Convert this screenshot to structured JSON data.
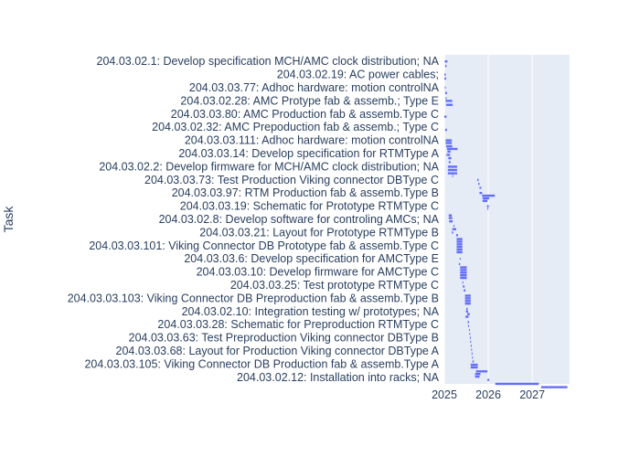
{
  "chart_data": {
    "type": "gantt",
    "ylabel": "Task",
    "xlabel": "",
    "x_tick_labels": [
      "2025",
      "2026",
      "2027"
    ],
    "xlim": [
      2025.0,
      2027.85
    ],
    "plot_background": "#e5ecf6",
    "bar_color": "#636efa",
    "y_tick_labels": [
      "204.03.02.1: Develop specification MCH/AMC clock distribution; NA",
      "204.03.02.19: AC power cables;",
      "204.03.03.77: Adhoc hardware: motion controlNA",
      "204.03.02.28: AMC Protype fab & assemb.; Type E",
      "204.03.03.80: AMC Production fab & assemb.Type C",
      "204.03.02.32: AMC Prepoduction fab & assemb.; Type C",
      "204.03.03.111: Adhoc hardware: motion controlNA",
      "204.03.03.14: Develop specification for RTMType A",
      "204.03.02.2: Develop firmware for MCH/AMC clock distribution; NA",
      "204.03.03.73: Test Production Viking connector DBType C",
      "204.03.03.97: RTM Production fab & assemb.Type B",
      "204.03.03.19: Schematic for Prototype RTMType C",
      "204.03.02.8: Develop software for controling AMCs; NA",
      "204.03.03.21: Layout for Prototype RTMType B",
      "204.03.03.101: Viking Connector DB Prototype fab & assemb.Type C",
      "204.03.03.6: Develop specification for AMCType E",
      "204.03.03.10: Develop firmware for AMCType C",
      "204.03.03.25: Test prototype RTMType C",
      "204.03.03.103: Viking Connector DB Preproduction fab & assemb.Type B",
      "204.03.02.10: Integration testing w/ prototypes; NA",
      "204.03.03.28: Schematic for Preproduction RTMType C",
      "204.03.03.63: Test Preproduction Viking connector DBType B",
      "204.03.03.68: Layout for Production Viking connector DBType A",
      "204.03.03.105: Viking Connector DB Production fab & assemb.Type A",
      "204.03.02.12: Installation into racks; NA"
    ],
    "tasks": [
      {
        "row": 0,
        "start": 2025.01,
        "end": 2025.07
      },
      {
        "row": 0.35,
        "start": 2025.02,
        "end": 2025.05
      },
      {
        "row": 1,
        "start": 2025.0,
        "end": 2025.03
      },
      {
        "row": 1.3,
        "start": 2025.0,
        "end": 2025.04
      },
      {
        "row": 2,
        "start": 2025.01,
        "end": 2025.03
      },
      {
        "row": 2.4,
        "start": 2025.02,
        "end": 2025.06
      },
      {
        "row": 2.8,
        "start": 2025.03,
        "end": 2025.05
      },
      {
        "row": 3.0,
        "start": 2025.03,
        "end": 2025.18
      },
      {
        "row": 3.3,
        "start": 2025.04,
        "end": 2025.19
      },
      {
        "row": 4.2,
        "start": 2025.0,
        "end": 2025.05
      },
      {
        "row": 5.2,
        "start": 2025.02,
        "end": 2025.06
      },
      {
        "row": 6.0,
        "start": 2025.03,
        "end": 2025.17
      },
      {
        "row": 6.2,
        "start": 2025.03,
        "end": 2025.17
      },
      {
        "row": 6.45,
        "start": 2025.04,
        "end": 2025.18
      },
      {
        "row": 6.65,
        "start": 2025.06,
        "end": 2025.3
      },
      {
        "row": 6.85,
        "start": 2025.07,
        "end": 2025.14
      },
      {
        "row": 7.1,
        "start": 2025.05,
        "end": 2025.13
      },
      {
        "row": 7.35,
        "start": 2025.09,
        "end": 2025.16
      },
      {
        "row": 7.65,
        "start": 2025.1,
        "end": 2025.14
      },
      {
        "row": 8.0,
        "start": 2025.08,
        "end": 2025.29
      },
      {
        "row": 8.25,
        "start": 2025.08,
        "end": 2025.29
      },
      {
        "row": 8.5,
        "start": 2025.08,
        "end": 2025.29
      },
      {
        "row": 8.7,
        "start": 2025.18,
        "end": 2025.2
      },
      {
        "row": 9.0,
        "start": 2025.75,
        "end": 2025.78
      },
      {
        "row": 9.3,
        "start": 2025.77,
        "end": 2025.8
      },
      {
        "row": 9.6,
        "start": 2025.8,
        "end": 2025.84
      },
      {
        "row": 10.0,
        "start": 2025.8,
        "end": 2025.86
      },
      {
        "row": 10.2,
        "start": 2025.86,
        "end": 2026.15
      },
      {
        "row": 10.4,
        "start": 2025.87,
        "end": 2026.02
      },
      {
        "row": 10.6,
        "start": 2025.87,
        "end": 2025.98
      },
      {
        "row": 11.0,
        "start": 2025.97,
        "end": 2026.01
      },
      {
        "row": 11.2,
        "start": 2025.98,
        "end": 2026.0
      },
      {
        "row": 11.7,
        "start": 2025.1,
        "end": 2025.17
      },
      {
        "row": 11.9,
        "start": 2025.1,
        "end": 2025.18
      },
      {
        "row": 12.15,
        "start": 2025.11,
        "end": 2025.19
      },
      {
        "row": 12.5,
        "start": 2025.21,
        "end": 2025.23
      },
      {
        "row": 12.75,
        "start": 2025.18,
        "end": 2025.27
      },
      {
        "row": 13.0,
        "start": 2025.17,
        "end": 2025.2
      },
      {
        "row": 13.2,
        "start": 2025.27,
        "end": 2025.31
      },
      {
        "row": 13.5,
        "start": 2025.28,
        "end": 2025.41
      },
      {
        "row": 13.7,
        "start": 2025.28,
        "end": 2025.41
      },
      {
        "row": 13.9,
        "start": 2025.28,
        "end": 2025.41
      },
      {
        "row": 14.1,
        "start": 2025.28,
        "end": 2025.41
      },
      {
        "row": 14.3,
        "start": 2025.28,
        "end": 2025.41
      },
      {
        "row": 14.5,
        "start": 2025.28,
        "end": 2025.41
      },
      {
        "row": 15.0,
        "start": 2025.35,
        "end": 2025.37
      },
      {
        "row": 15.4,
        "start": 2025.33,
        "end": 2025.36
      },
      {
        "row": 15.65,
        "start": 2025.36,
        "end": 2025.51
      },
      {
        "row": 15.85,
        "start": 2025.36,
        "end": 2025.51
      },
      {
        "row": 16.05,
        "start": 2025.36,
        "end": 2025.51
      },
      {
        "row": 16.25,
        "start": 2025.36,
        "end": 2025.51
      },
      {
        "row": 16.45,
        "start": 2025.36,
        "end": 2025.51
      },
      {
        "row": 16.8,
        "start": 2025.41,
        "end": 2025.43
      },
      {
        "row": 17.1,
        "start": 2025.42,
        "end": 2025.46
      },
      {
        "row": 17.4,
        "start": 2025.44,
        "end": 2025.48
      },
      {
        "row": 17.8,
        "start": 2025.47,
        "end": 2025.6
      },
      {
        "row": 18.0,
        "start": 2025.47,
        "end": 2025.6
      },
      {
        "row": 18.2,
        "start": 2025.47,
        "end": 2025.6
      },
      {
        "row": 18.4,
        "start": 2025.47,
        "end": 2025.6
      },
      {
        "row": 18.8,
        "start": 2025.5,
        "end": 2025.53
      },
      {
        "row": 19.0,
        "start": 2025.49,
        "end": 2025.54
      },
      {
        "row": 19.2,
        "start": 2025.52,
        "end": 2025.58
      },
      {
        "row": 19.4,
        "start": 2025.48,
        "end": 2025.55
      },
      {
        "row": 19.8,
        "start": 2025.53,
        "end": 2025.56
      },
      {
        "row": 20.1,
        "start": 2025.54,
        "end": 2025.56
      },
      {
        "row": 20.4,
        "start": 2025.56,
        "end": 2025.58
      },
      {
        "row": 20.7,
        "start": 2025.57,
        "end": 2025.59
      },
      {
        "row": 21.0,
        "start": 2025.58,
        "end": 2025.6
      },
      {
        "row": 21.3,
        "start": 2025.59,
        "end": 2025.61
      },
      {
        "row": 21.6,
        "start": 2025.6,
        "end": 2025.62
      },
      {
        "row": 21.9,
        "start": 2025.61,
        "end": 2025.63
      },
      {
        "row": 22.2,
        "start": 2025.62,
        "end": 2025.64
      },
      {
        "row": 22.5,
        "start": 2025.63,
        "end": 2025.65
      },
      {
        "row": 22.8,
        "start": 2025.64,
        "end": 2025.67
      },
      {
        "row": 23.05,
        "start": 2025.6,
        "end": 2025.76
      },
      {
        "row": 23.25,
        "start": 2025.6,
        "end": 2025.76
      },
      {
        "row": 23.55,
        "start": 2025.72,
        "end": 2025.98
      },
      {
        "row": 23.75,
        "start": 2025.7,
        "end": 2025.82
      },
      {
        "row": 23.95,
        "start": 2025.7,
        "end": 2025.8
      },
      {
        "row": 24.2,
        "start": 2025.98,
        "end": 2026.02
      },
      {
        "row": 24.5,
        "start": 2026.16,
        "end": 2027.15
      },
      {
        "row": 24.75,
        "start": 2027.2,
        "end": 2027.8
      }
    ]
  }
}
